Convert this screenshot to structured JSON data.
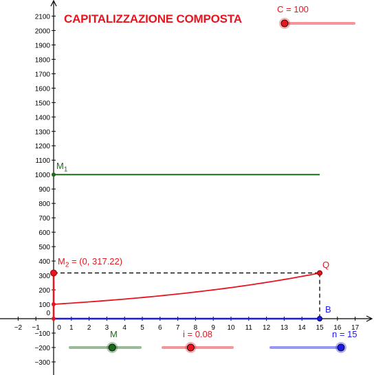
{
  "title": "CAPITALIZZAZIONE COMPOSTA",
  "axes": {
    "x_ticks": [
      "−2",
      "−1",
      "0",
      "1",
      "2",
      "3",
      "4",
      "5",
      "6",
      "7",
      "8",
      "9",
      "10",
      "11",
      "12",
      "13",
      "14",
      "15",
      "16",
      "17"
    ],
    "y_ticks": [
      "−300",
      "−200",
      "−100",
      "0",
      "100",
      "200",
      "300",
      "400",
      "500",
      "600",
      "700",
      "800",
      "900",
      "1000",
      "1100",
      "1200",
      "1300",
      "1400",
      "1500",
      "1600",
      "1700",
      "1800",
      "1900",
      "2000",
      "2100"
    ]
  },
  "sliders": {
    "C": {
      "label": "C = 100",
      "value": 100,
      "color": "#e8141e",
      "knob_fraction": 0.0
    },
    "M": {
      "label": "M",
      "color": "#1b6b1b",
      "knob_fraction": 0.6
    },
    "i": {
      "label": "i = 0.08",
      "value": 0.08,
      "color": "#e8141e",
      "knob_fraction": 0.4
    },
    "n": {
      "label": "n = 15",
      "value": 15,
      "color": "#1a1ae6",
      "knob_fraction": 1.0
    }
  },
  "points": {
    "M1": {
      "label": "M",
      "sub": "1",
      "y": 1000
    },
    "M2": {
      "label": "M",
      "sub": "2",
      "suffix": " = (0, 317.22)",
      "y": 317.22
    },
    "Q": {
      "label": "Q",
      "x": 15,
      "y": 317.22
    },
    "B": {
      "label": "B",
      "x": 15,
      "y": 0
    }
  },
  "colors": {
    "red": "#e8141e",
    "green": "#1b6b1b",
    "blue": "#1a1ae6",
    "axis": "#000000"
  }
}
